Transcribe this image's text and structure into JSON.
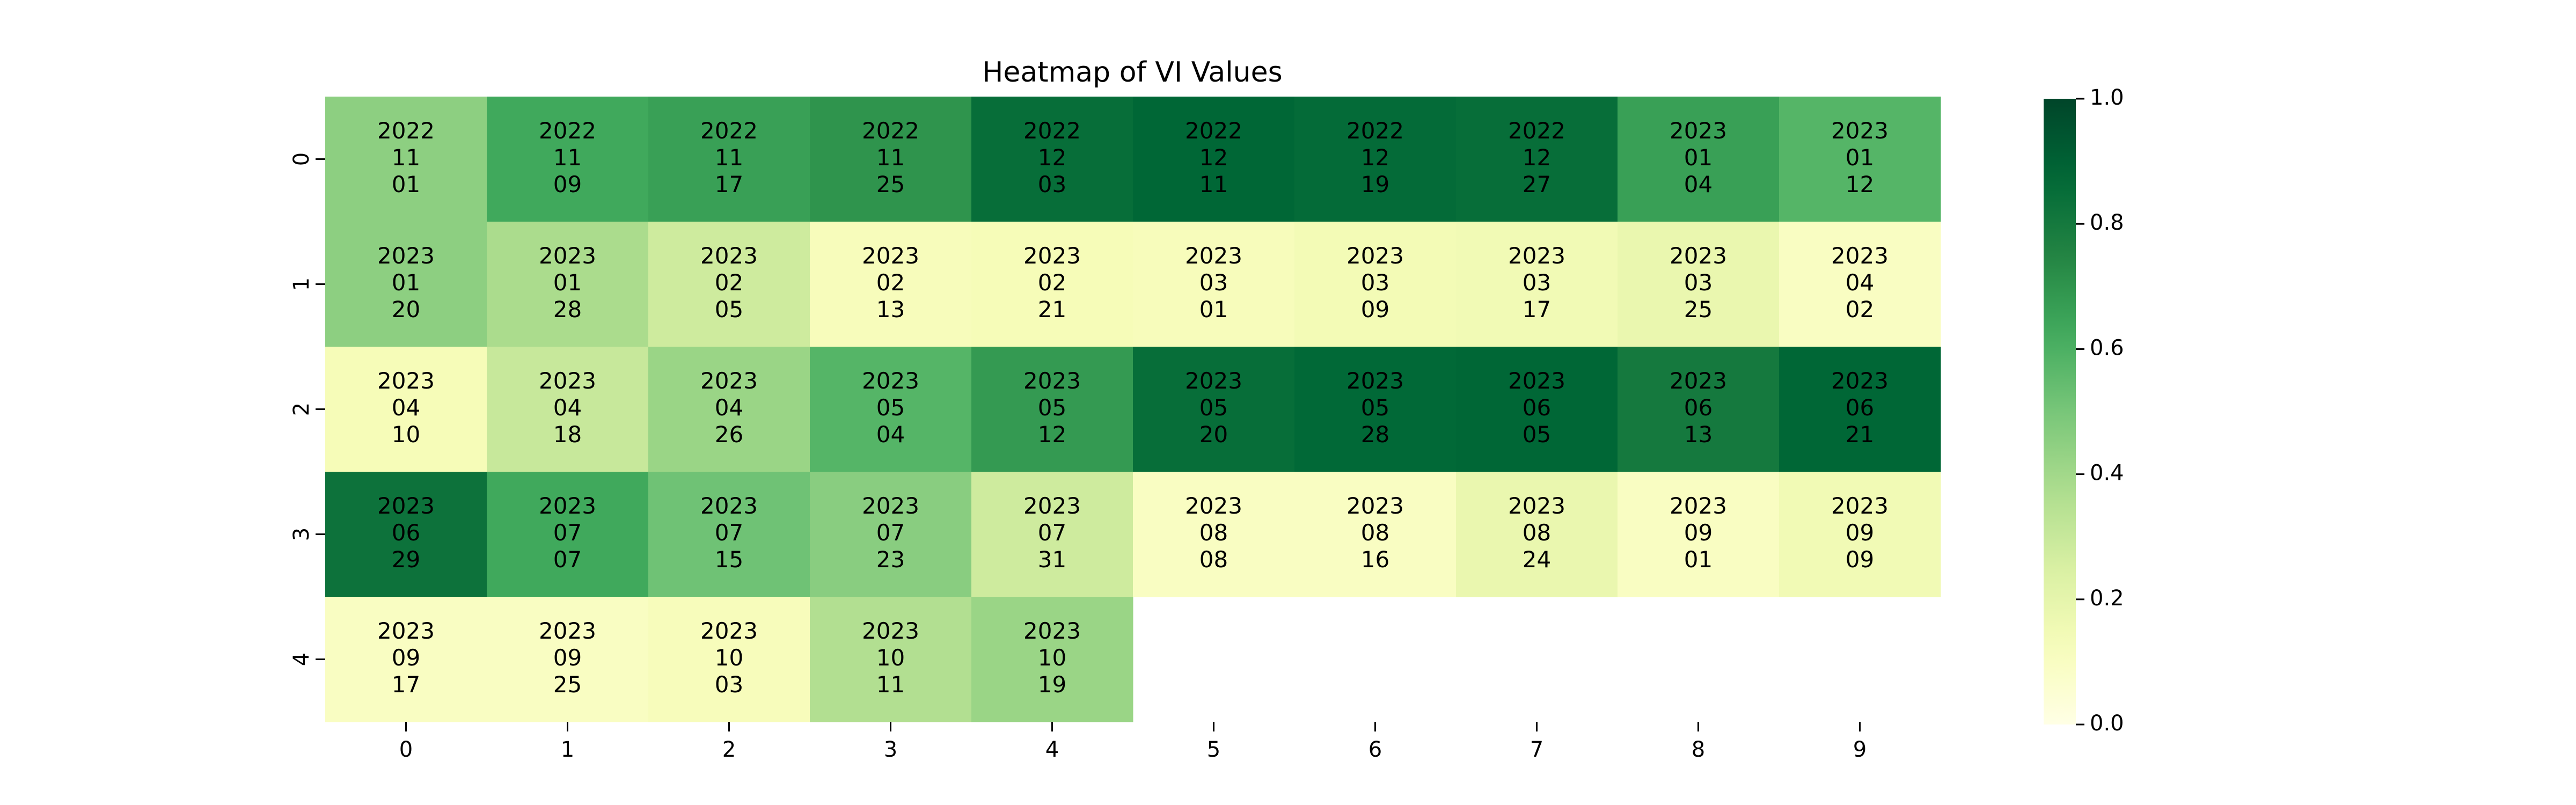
{
  "chart_data": {
    "type": "heatmap",
    "title": "Heatmap of VI Values",
    "xlabel": "",
    "ylabel": "",
    "x_ticks": [
      "0",
      "1",
      "2",
      "3",
      "4",
      "5",
      "6",
      "7",
      "8",
      "9"
    ],
    "y_ticks": [
      "0",
      "1",
      "2",
      "3",
      "4"
    ],
    "colormap": "YlGn",
    "colorbar": {
      "range": [
        0.0,
        1.0
      ],
      "ticks": [
        "0.0",
        "0.2",
        "0.4",
        "0.6",
        "0.8",
        "1.0"
      ],
      "placement": "right"
    },
    "grid": false,
    "cells": [
      [
        {
          "value": 0.45,
          "label": [
            "2022",
            "11",
            "01"
          ]
        },
        {
          "value": 0.63,
          "label": [
            "2022",
            "11",
            "09"
          ]
        },
        {
          "value": 0.66,
          "label": [
            "2022",
            "11",
            "17"
          ]
        },
        {
          "value": 0.7,
          "label": [
            "2022",
            "11",
            "25"
          ]
        },
        {
          "value": 0.85,
          "label": [
            "2022",
            "12",
            "03"
          ]
        },
        {
          "value": 0.88,
          "label": [
            "2022",
            "12",
            "11"
          ]
        },
        {
          "value": 0.86,
          "label": [
            "2022",
            "12",
            "19"
          ]
        },
        {
          "value": 0.85,
          "label": [
            "2022",
            "12",
            "27"
          ]
        },
        {
          "value": 0.66,
          "label": [
            "2023",
            "01",
            "04"
          ]
        },
        {
          "value": 0.58,
          "label": [
            "2023",
            "01",
            "12"
          ]
        }
      ],
      [
        {
          "value": 0.45,
          "label": [
            "2023",
            "01",
            "20"
          ]
        },
        {
          "value": 0.38,
          "label": [
            "2023",
            "01",
            "28"
          ]
        },
        {
          "value": 0.28,
          "label": [
            "2023",
            "02",
            "05"
          ]
        },
        {
          "value": 0.12,
          "label": [
            "2023",
            "02",
            "13"
          ]
        },
        {
          "value": 0.13,
          "label": [
            "2023",
            "02",
            "21"
          ]
        },
        {
          "value": 0.12,
          "label": [
            "2023",
            "03",
            "01"
          ]
        },
        {
          "value": 0.14,
          "label": [
            "2023",
            "03",
            "09"
          ]
        },
        {
          "value": 0.15,
          "label": [
            "2023",
            "03",
            "17"
          ]
        },
        {
          "value": 0.18,
          "label": [
            "2023",
            "03",
            "25"
          ]
        },
        {
          "value": 0.1,
          "label": [
            "2023",
            "04",
            "02"
          ]
        }
      ],
      [
        {
          "value": 0.13,
          "label": [
            "2023",
            "04",
            "10"
          ]
        },
        {
          "value": 0.3,
          "label": [
            "2023",
            "04",
            "18"
          ]
        },
        {
          "value": 0.42,
          "label": [
            "2023",
            "04",
            "26"
          ]
        },
        {
          "value": 0.58,
          "label": [
            "2023",
            "05",
            "04"
          ]
        },
        {
          "value": 0.68,
          "label": [
            "2023",
            "05",
            "12"
          ]
        },
        {
          "value": 0.85,
          "label": [
            "2023",
            "05",
            "20"
          ]
        },
        {
          "value": 0.87,
          "label": [
            "2023",
            "05",
            "28"
          ]
        },
        {
          "value": 0.88,
          "label": [
            "2023",
            "06",
            "05"
          ]
        },
        {
          "value": 0.8,
          "label": [
            "2023",
            "06",
            "13"
          ]
        },
        {
          "value": 0.88,
          "label": [
            "2023",
            "06",
            "21"
          ]
        }
      ],
      [
        {
          "value": 0.83,
          "label": [
            "2023",
            "06",
            "29"
          ]
        },
        {
          "value": 0.63,
          "label": [
            "2023",
            "07",
            "07"
          ]
        },
        {
          "value": 0.52,
          "label": [
            "2023",
            "07",
            "15"
          ]
        },
        {
          "value": 0.46,
          "label": [
            "2023",
            "07",
            "23"
          ]
        },
        {
          "value": 0.28,
          "label": [
            "2023",
            "07",
            "31"
          ]
        },
        {
          "value": 0.1,
          "label": [
            "2023",
            "08",
            "08"
          ]
        },
        {
          "value": 0.1,
          "label": [
            "2023",
            "08",
            "16"
          ]
        },
        {
          "value": 0.18,
          "label": [
            "2023",
            "08",
            "24"
          ]
        },
        {
          "value": 0.1,
          "label": [
            "2023",
            "09",
            "01"
          ]
        },
        {
          "value": 0.15,
          "label": [
            "2023",
            "09",
            "09"
          ]
        }
      ],
      [
        {
          "value": 0.1,
          "label": [
            "2023",
            "09",
            "17"
          ]
        },
        {
          "value": 0.1,
          "label": [
            "2023",
            "09",
            "25"
          ]
        },
        {
          "value": 0.12,
          "label": [
            "2023",
            "10",
            "03"
          ]
        },
        {
          "value": 0.36,
          "label": [
            "2023",
            "10",
            "11"
          ]
        },
        {
          "value": 0.42,
          "label": [
            "2023",
            "10",
            "19"
          ]
        },
        null,
        null,
        null,
        null,
        null
      ]
    ]
  }
}
